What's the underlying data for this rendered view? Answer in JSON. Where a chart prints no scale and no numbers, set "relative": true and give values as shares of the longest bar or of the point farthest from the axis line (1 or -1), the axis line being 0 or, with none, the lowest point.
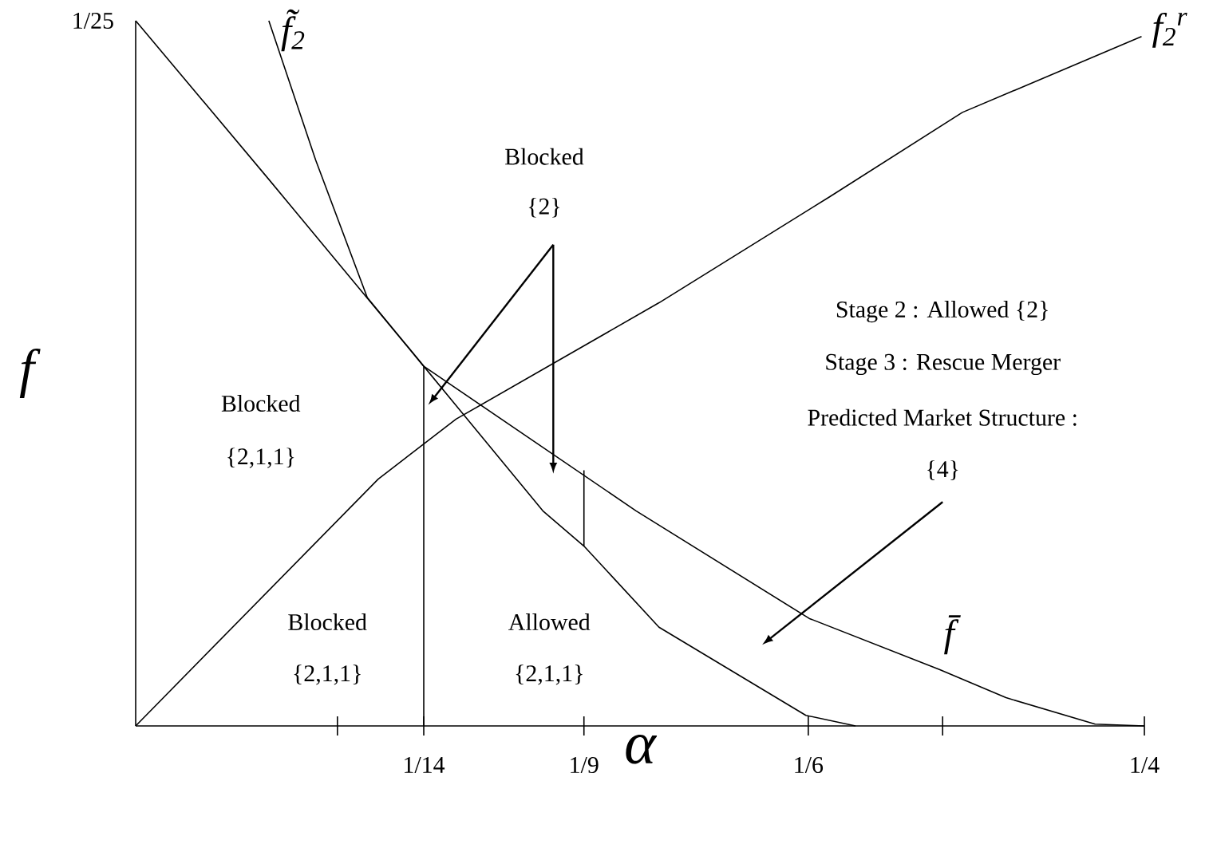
{
  "chart_data": {
    "type": "line",
    "relative": true,
    "xlabel": "α",
    "ylabel": "f",
    "xlim": [
      0,
      0.25
    ],
    "xticks": [
      {
        "value": 0.05,
        "label": null
      },
      {
        "value": 0.0714,
        "label": "1/14"
      },
      {
        "value": 0.1111,
        "label": "1/9"
      },
      {
        "value": 0.1667,
        "label": "1/6"
      },
      {
        "value": 0.2,
        "label": null
      },
      {
        "value": 0.25,
        "label": "1/4"
      }
    ],
    "series": [
      {
        "name": "f$_{2}$$^{r}$",
        "color": "#000000",
        "x": [
          0,
          0.0601,
          0.0794,
          0.1297,
          0.1719,
          0.2049,
          0.2493
        ],
        "values": [
          0,
          0.35,
          0.435,
          0.6,
          0.75,
          0.87,
          0.9775
        ]
      },
      {
        "name": "f̃$_{2}$",
        "color": "#000000",
        "x": [
          0.033,
          0.0446,
          0.0574,
          0.0714,
          0.1009,
          0.1111,
          0.1297,
          0.1661,
          0.1784
        ],
        "values": [
          1,
          0.8025,
          0.6075,
          0.51,
          0.305,
          0.255,
          0.14,
          0.015,
          0
        ]
      },
      {
        "name": "f̄",
        "color": "#000000",
        "x": [
          0,
          0.033,
          0.0714,
          0.124,
          0.1669,
          0.1992,
          0.2157,
          0.2378,
          0.25
        ],
        "values": [
          1,
          0.775,
          0.51,
          0.305,
          0.1525,
          0.08,
          0.04,
          0.0025,
          0
        ]
      },
      {
        "color": "#000000",
        "x": [
          0.0714,
          0.0714
        ],
        "values": [
          0,
          0.51
        ]
      },
      {
        "color": "#000000",
        "x": [
          0.1111,
          0.1111
        ],
        "values": [
          0.255,
          0.3625
        ]
      }
    ],
    "annotations": [
      "Blocked",
      "{2,1,1}",
      "Blocked",
      "{2,1,1}",
      "Allowed",
      "{2,1,1}",
      "Blocked",
      "{2}",
      "Stage 2 : Allowed {2}",
      "Stage 3 : Rescue Merger",
      "Predicted Market Structure :",
      "{4}",
      "1/25"
    ]
  }
}
